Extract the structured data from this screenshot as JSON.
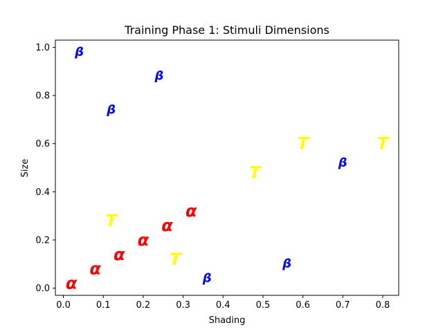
{
  "chart_data": {
    "type": "scatter",
    "title": "Training Phase 1: Stimuli Dimensions",
    "xlabel": "Shading",
    "ylabel": "Size",
    "xlim": [
      -0.02,
      0.84
    ],
    "ylim": [
      -0.03,
      1.03
    ],
    "xticks": [
      "0.0",
      "0.1",
      "0.2",
      "0.3",
      "0.4",
      "0.5",
      "0.6",
      "0.7",
      "0.8"
    ],
    "yticks": [
      "0.0",
      "0.2",
      "0.4",
      "0.6",
      "0.8",
      "1.0"
    ],
    "grid": false,
    "series": [
      {
        "symbol": "α",
        "color": "#ff0000",
        "points": [
          {
            "x": 0.02,
            "y": 0.02
          },
          {
            "x": 0.08,
            "y": 0.08
          },
          {
            "x": 0.14,
            "y": 0.14
          },
          {
            "x": 0.2,
            "y": 0.2
          },
          {
            "x": 0.26,
            "y": 0.26
          },
          {
            "x": 0.32,
            "y": 0.32
          }
        ]
      },
      {
        "symbol": "β",
        "color": "#0000ff",
        "points": [
          {
            "x": 0.04,
            "y": 0.98
          },
          {
            "x": 0.24,
            "y": 0.88
          },
          {
            "x": 0.12,
            "y": 0.74
          },
          {
            "x": 0.7,
            "y": 0.52
          },
          {
            "x": 0.56,
            "y": 0.1
          },
          {
            "x": 0.36,
            "y": 0.04
          }
        ]
      },
      {
        "symbol": "T",
        "color": "#ffff00",
        "points": [
          {
            "x": 0.6,
            "y": 0.6
          },
          {
            "x": 0.8,
            "y": 0.6
          },
          {
            "x": 0.48,
            "y": 0.48
          },
          {
            "x": 0.12,
            "y": 0.28
          },
          {
            "x": 0.28,
            "y": 0.12
          }
        ]
      }
    ]
  }
}
